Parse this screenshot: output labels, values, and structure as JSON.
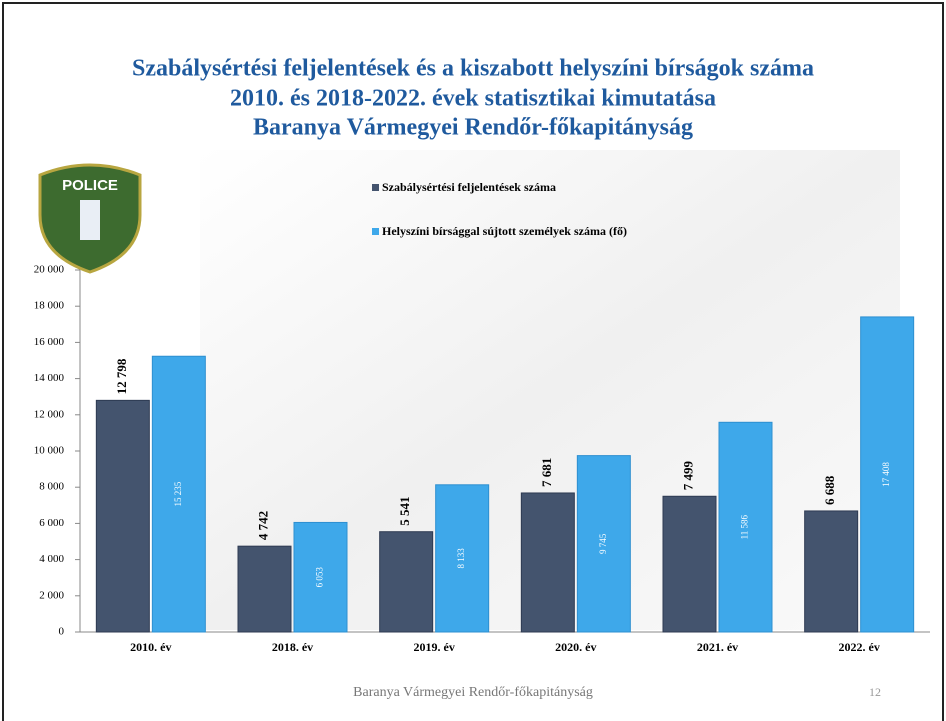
{
  "chart_data": {
    "type": "bar",
    "title_lines": [
      "Szabálysértési feljelentések és a kiszabott helyszíni bírságok száma",
      "2010. és 2018-2022. évek statisztikai kimutatása",
      "Baranya Vármegyei Rendőr-főkapitányság"
    ],
    "logo_text": "POLICE",
    "categories": [
      "2010. év",
      "2018. év",
      "2019. év",
      "2020. év",
      "2021. év",
      "2022. év"
    ],
    "series": [
      {
        "name": "Szabálysértési feljelentések száma",
        "color": "#44546e",
        "values": [
          12798,
          4742,
          5541,
          7681,
          7499,
          6688
        ],
        "value_labels": [
          "12 798",
          "4 742",
          "5 541",
          "7 681",
          "7 499",
          "6 688"
        ]
      },
      {
        "name": "Helyszíni bírsággal sújtott személyek száma (fő)",
        "color": "#3ea8ea",
        "values": [
          15235,
          6053,
          8133,
          9745,
          11586,
          17408
        ],
        "value_labels": [
          "15 235",
          "6 053",
          "8 133",
          "9 745",
          "11 586",
          "17 408"
        ]
      }
    ],
    "ylim": [
      0,
      20000
    ],
    "yticks": [
      0,
      {
        "value": 2000,
        "label": "2 000"
      },
      {
        "value": 4000,
        "label": "4 000"
      },
      {
        "value": 6000,
        "label": "6 000"
      },
      {
        "value": 8000,
        "label": "8 000"
      },
      {
        "value": 10000,
        "label": "10 000"
      },
      {
        "value": 12000,
        "label": "12 000"
      },
      {
        "value": 14000,
        "label": "14 000"
      },
      {
        "value": 16000,
        "label": "16 000"
      },
      {
        "value": 18000,
        "label": "18 000"
      },
      {
        "value": 20000,
        "label": "20 000"
      }
    ],
    "footer": "Baranya Vármegyei Rendőr-főkapitányság",
    "page_number": "12"
  }
}
